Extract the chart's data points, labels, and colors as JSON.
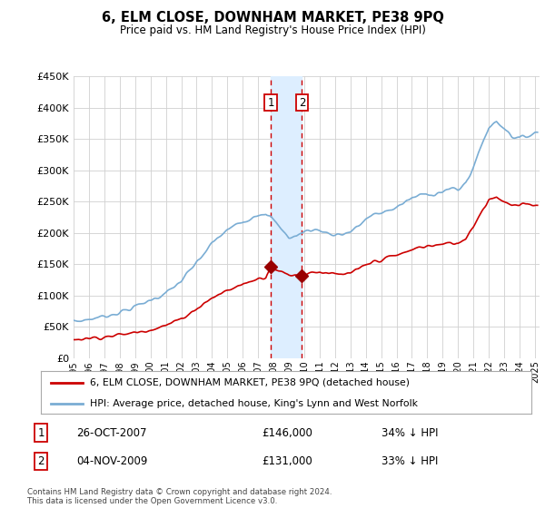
{
  "title": "6, ELM CLOSE, DOWNHAM MARKET, PE38 9PQ",
  "subtitle": "Price paid vs. HM Land Registry's House Price Index (HPI)",
  "ylim": [
    0,
    450000
  ],
  "yticks": [
    0,
    50000,
    100000,
    150000,
    200000,
    250000,
    300000,
    350000,
    400000,
    450000
  ],
  "ytick_labels": [
    "£0",
    "£50K",
    "£100K",
    "£150K",
    "£200K",
    "£250K",
    "£300K",
    "£350K",
    "£400K",
    "£450K"
  ],
  "hpi_color": "#7aadd4",
  "price_color": "#cc0000",
  "marker_color": "#990000",
  "vline_color": "#cc0000",
  "shade_color": "#ddeeff",
  "transaction1_date": "26-OCT-2007",
  "transaction1_price": 146000,
  "transaction1_label": "34% ↓ HPI",
  "transaction2_date": "04-NOV-2009",
  "transaction2_price": 131000,
  "transaction2_label": "33% ↓ HPI",
  "legend_property": "6, ELM CLOSE, DOWNHAM MARKET, PE38 9PQ (detached house)",
  "legend_hpi": "HPI: Average price, detached house, King's Lynn and West Norfolk",
  "footer": "Contains HM Land Registry data © Crown copyright and database right 2024.\nThis data is licensed under the Open Government Licence v3.0.",
  "transaction1_x": 2007.82,
  "transaction2_x": 2009.85,
  "xlim_left": 1995.0,
  "xlim_right": 2025.3
}
